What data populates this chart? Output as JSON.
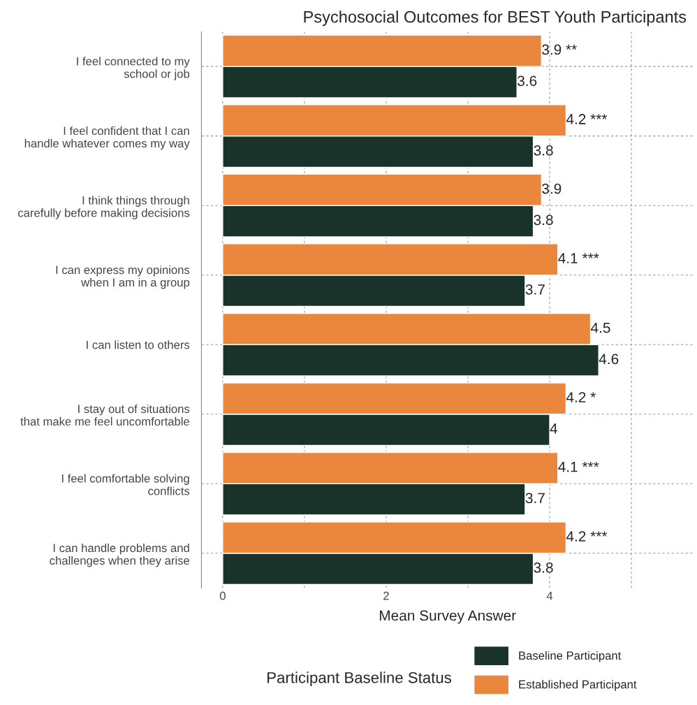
{
  "chart_data": {
    "type": "bar",
    "orientation": "horizontal",
    "title": "Psychosocial Outcomes for BEST Youth Participants",
    "xlabel": "Mean Survey Answer",
    "legend_title": "Participant Baseline Status",
    "categories": [
      "I feel connected to my\nschool or job",
      "I feel confident that I can\nhandle whatever comes my way",
      "I think things through\ncarefully before making decisions",
      "I can express my opinions\nwhen I am in a group",
      "I can listen to others",
      "I stay out of situations\nthat make me feel uncomfortable",
      "I feel comfortable solving\nconflicts",
      "I can handle problems and\nchallenges when they arise"
    ],
    "series": [
      {
        "name": "Baseline Participant",
        "color": "#19332a",
        "values": [
          3.6,
          3.8,
          3.8,
          3.7,
          4.6,
          4,
          3.7,
          3.8
        ],
        "value_labels": [
          "3.6",
          "3.8",
          "3.8",
          "3.7",
          "4.6",
          "4",
          "3.7",
          "3.8"
        ]
      },
      {
        "name": "Established Participant",
        "color": "#eb873d",
        "values": [
          3.9,
          4.2,
          3.9,
          4.1,
          4.5,
          4.2,
          4.1,
          4.2
        ],
        "value_labels": [
          "3.9 **",
          "4.2 ***",
          "3.9",
          "4.1 ***",
          "4.5",
          "4.2 *",
          "4.1 ***",
          "4.2 ***"
        ]
      }
    ],
    "xlim": [
      -0.26,
      5.76
    ],
    "xticks": [
      0,
      {
        "value": 1,
        "label": null
      },
      2,
      {
        "value": 3,
        "label": null
      },
      4,
      {
        "value": 5,
        "label": null
      }
    ],
    "grid": true,
    "legend": "bottom"
  }
}
